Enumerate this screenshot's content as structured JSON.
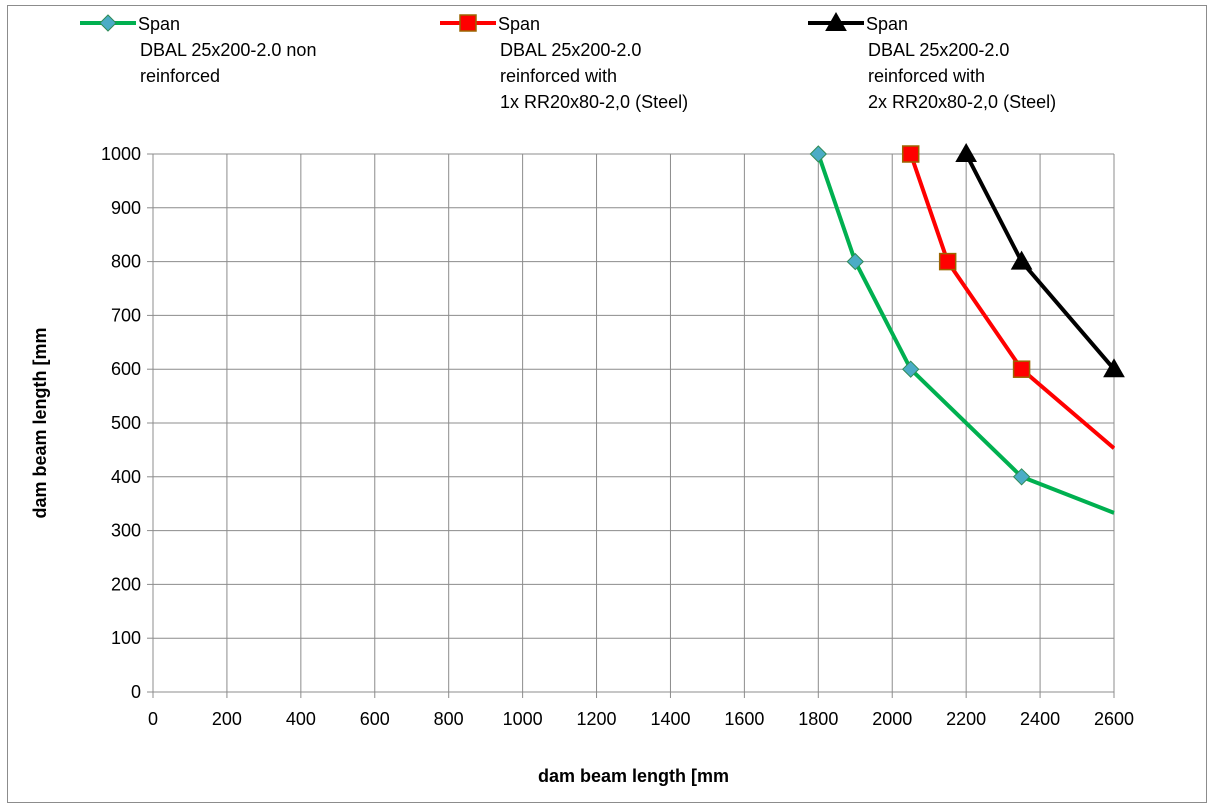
{
  "chart_data": {
    "type": "line",
    "title": "",
    "xlabel": "dam beam length [mm",
    "ylabel": "dam beam length [mm",
    "xlim": [
      0,
      2600
    ],
    "ylim": [
      0,
      1000
    ],
    "xticks": [
      0,
      200,
      400,
      600,
      800,
      1000,
      1200,
      1400,
      1600,
      1800,
      2000,
      2200,
      2400,
      2600
    ],
    "yticks": [
      0,
      100,
      200,
      300,
      400,
      500,
      600,
      700,
      800,
      900,
      1000
    ],
    "grid": true,
    "legend_position": "top",
    "series": [
      {
        "name": "Span",
        "legend_lines": [
          "Span",
          "DBAL 25x200-2.0 non",
          "reinforced"
        ],
        "color": "#00b050",
        "marker": "diamond",
        "marker_fill": "#4bacc6",
        "x": [
          1800,
          1900,
          2050,
          2350,
          2600
        ],
        "y": [
          1000,
          800,
          600,
          400,
          333
        ],
        "markers_at": [
          1800,
          1900,
          2050,
          2350
        ]
      },
      {
        "name": "Span",
        "legend_lines": [
          "Span",
          "DBAL 25x200-2.0",
          "reinforced with",
          "1x RR20x80-2,0 (Steel)"
        ],
        "color": "#ff0000",
        "marker": "square",
        "marker_fill": "#ff0000",
        "x": [
          2050,
          2150,
          2350,
          2600
        ],
        "y": [
          1000,
          800,
          600,
          453
        ],
        "markers_at": [
          2050,
          2150,
          2350
        ]
      },
      {
        "name": "Span",
        "legend_lines": [
          "Span",
          "DBAL 25x200-2.0",
          "reinforced with",
          "2x RR20x80-2,0 (Steel)"
        ],
        "color": "#000000",
        "marker": "triangle",
        "marker_fill": "#000000",
        "x": [
          2200,
          2350,
          2600
        ],
        "y": [
          1000,
          800,
          600
        ],
        "markers_at": [
          2200,
          2350,
          2600
        ]
      }
    ]
  }
}
